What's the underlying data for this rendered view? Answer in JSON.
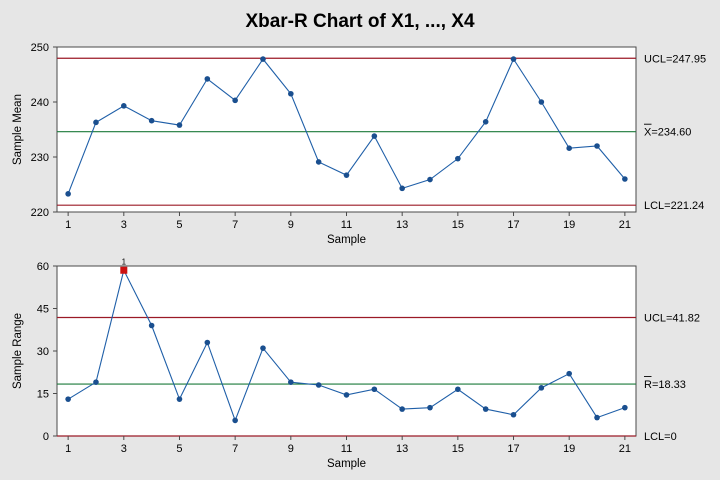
{
  "chart_data": [
    {
      "type": "line",
      "title": "Xbar-R Chart of X1, ..., X4",
      "xlabel": "Sample",
      "ylabel": "Sample Mean",
      "ylim": [
        220,
        250
      ],
      "yticks": [
        220,
        230,
        240,
        250
      ],
      "xticks": [
        1,
        3,
        5,
        7,
        9,
        11,
        13,
        15,
        17,
        19,
        21
      ],
      "x": [
        1,
        2,
        3,
        4,
        5,
        6,
        7,
        8,
        9,
        10,
        11,
        12,
        13,
        14,
        15,
        16,
        17,
        18,
        19,
        20,
        21
      ],
      "series": [
        {
          "values": [
            223.3,
            236.3,
            239.3,
            236.6,
            235.8,
            244.2,
            240.3,
            247.8,
            241.5,
            229.1,
            226.7,
            233.8,
            224.3,
            225.9,
            229.7,
            236.4,
            247.8,
            240.0,
            231.6,
            232.0,
            226.0
          ]
        }
      ],
      "reference_lines": [
        {
          "label": "UCL=247.95",
          "value": 247.95,
          "color": "#9b1a26"
        },
        {
          "label": "=234.60",
          "bar_symbol": "X",
          "value": 234.6,
          "color": "#1b7a3a"
        },
        {
          "label": "LCL=221.24",
          "value": 221.24,
          "color": "#9b1a26"
        }
      ],
      "line_color": "#1f5fa8",
      "marker_color": "#1a4f8f",
      "grid": false
    },
    {
      "type": "line",
      "xlabel": "Sample",
      "ylabel": "Sample Range",
      "ylim": [
        0,
        60
      ],
      "yticks": [
        0,
        15,
        30,
        45,
        60
      ],
      "xticks": [
        1,
        3,
        5,
        7,
        9,
        11,
        13,
        15,
        17,
        19,
        21
      ],
      "x": [
        1,
        2,
        3,
        4,
        5,
        6,
        7,
        8,
        9,
        10,
        11,
        12,
        13,
        14,
        15,
        16,
        17,
        18,
        19,
        20,
        21
      ],
      "series": [
        {
          "values": [
            13.0,
            19.0,
            58.5,
            39.0,
            13.0,
            33.0,
            5.5,
            31.0,
            19.0,
            18.0,
            14.5,
            16.5,
            9.5,
            10.0,
            16.5,
            9.5,
            7.5,
            17.0,
            22.0,
            6.5,
            10.0
          ]
        }
      ],
      "out_of_control": [
        {
          "x": 3,
          "flag": "1",
          "color": "#cc1111"
        }
      ],
      "reference_lines": [
        {
          "label": "UCL=41.82",
          "value": 41.82,
          "color": "#9b1a26"
        },
        {
          "label": "=18.33",
          "bar_symbol": "R",
          "value": 18.33,
          "color": "#1b7a3a"
        },
        {
          "label": "LCL=0",
          "value": 0,
          "color": "#9b1a26"
        }
      ],
      "line_color": "#1f5fa8",
      "marker_color": "#1a4f8f",
      "grid": false
    }
  ]
}
